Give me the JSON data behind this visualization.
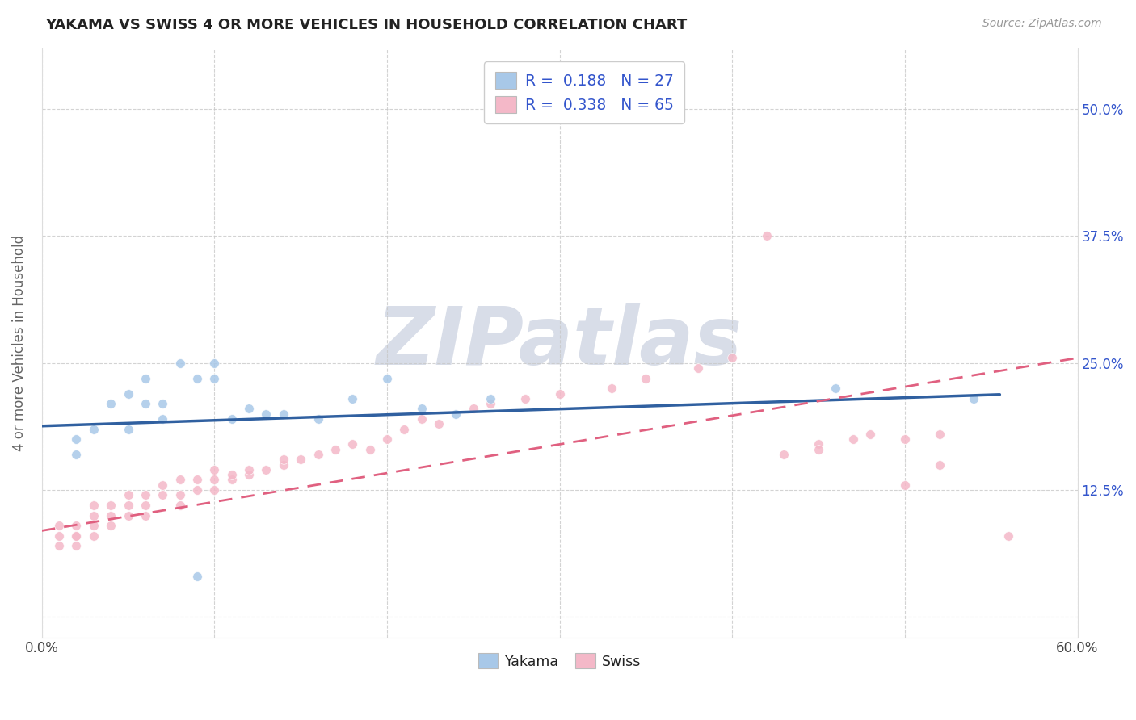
{
  "title": "YAKAMA VS SWISS 4 OR MORE VEHICLES IN HOUSEHOLD CORRELATION CHART",
  "source_text": "Source: ZipAtlas.com",
  "ylabel": "4 or more Vehicles in Household",
  "xlim": [
    0.0,
    0.6
  ],
  "ylim": [
    -0.02,
    0.56
  ],
  "blue_color": "#a8c8e8",
  "pink_color": "#f4b8c8",
  "blue_line_color": "#3060a0",
  "pink_line_color": "#e06080",
  "watermark_color": "#d8dde8",
  "background_color": "#ffffff",
  "grid_color": "#c8c8c8",
  "title_color": "#222222",
  "source_color": "#999999",
  "legend_text_color": "#3355cc",
  "axis_label_color": "#3355cc",
  "yakama_x": [
    0.02,
    0.02,
    0.03,
    0.04,
    0.05,
    0.05,
    0.06,
    0.06,
    0.07,
    0.07,
    0.08,
    0.09,
    0.09,
    0.1,
    0.1,
    0.11,
    0.12,
    0.13,
    0.14,
    0.16,
    0.18,
    0.2,
    0.22,
    0.24,
    0.26,
    0.46,
    0.54
  ],
  "yakama_y": [
    0.175,
    0.16,
    0.185,
    0.21,
    0.22,
    0.185,
    0.235,
    0.21,
    0.195,
    0.21,
    0.25,
    0.235,
    0.04,
    0.25,
    0.235,
    0.195,
    0.205,
    0.2,
    0.2,
    0.195,
    0.215,
    0.235,
    0.205,
    0.2,
    0.215,
    0.225,
    0.215
  ],
  "swiss_x": [
    0.01,
    0.01,
    0.01,
    0.02,
    0.02,
    0.02,
    0.02,
    0.03,
    0.03,
    0.03,
    0.03,
    0.04,
    0.04,
    0.04,
    0.05,
    0.05,
    0.05,
    0.06,
    0.06,
    0.06,
    0.07,
    0.07,
    0.08,
    0.08,
    0.08,
    0.09,
    0.09,
    0.1,
    0.1,
    0.1,
    0.11,
    0.11,
    0.12,
    0.12,
    0.13,
    0.14,
    0.14,
    0.15,
    0.16,
    0.17,
    0.18,
    0.19,
    0.2,
    0.21,
    0.22,
    0.23,
    0.25,
    0.26,
    0.28,
    0.3,
    0.33,
    0.35,
    0.38,
    0.4,
    0.42,
    0.45,
    0.47,
    0.48,
    0.5,
    0.52,
    0.43,
    0.45,
    0.5,
    0.52,
    0.56
  ],
  "swiss_y": [
    0.07,
    0.08,
    0.09,
    0.07,
    0.08,
    0.08,
    0.09,
    0.08,
    0.09,
    0.1,
    0.11,
    0.09,
    0.1,
    0.11,
    0.1,
    0.11,
    0.12,
    0.1,
    0.11,
    0.12,
    0.12,
    0.13,
    0.11,
    0.12,
    0.135,
    0.125,
    0.135,
    0.125,
    0.135,
    0.145,
    0.135,
    0.14,
    0.14,
    0.145,
    0.145,
    0.15,
    0.155,
    0.155,
    0.16,
    0.165,
    0.17,
    0.165,
    0.175,
    0.185,
    0.195,
    0.19,
    0.205,
    0.21,
    0.215,
    0.22,
    0.225,
    0.235,
    0.245,
    0.255,
    0.375,
    0.17,
    0.175,
    0.18,
    0.13,
    0.15,
    0.16,
    0.165,
    0.175,
    0.18,
    0.08
  ],
  "blue_trend_x": [
    0.0,
    0.555
  ],
  "blue_trend_y": [
    0.188,
    0.219
  ],
  "pink_trend_x": [
    0.0,
    0.6
  ],
  "pink_trend_y": [
    0.085,
    0.255
  ],
  "yticks": [
    0.0,
    0.125,
    0.25,
    0.375,
    0.5
  ],
  "ytick_labels_right": [
    "",
    "12.5%",
    "25.0%",
    "37.5%",
    "50.0%"
  ],
  "xtick_positions": [
    0.0,
    0.1,
    0.2,
    0.3,
    0.4,
    0.5,
    0.6
  ]
}
